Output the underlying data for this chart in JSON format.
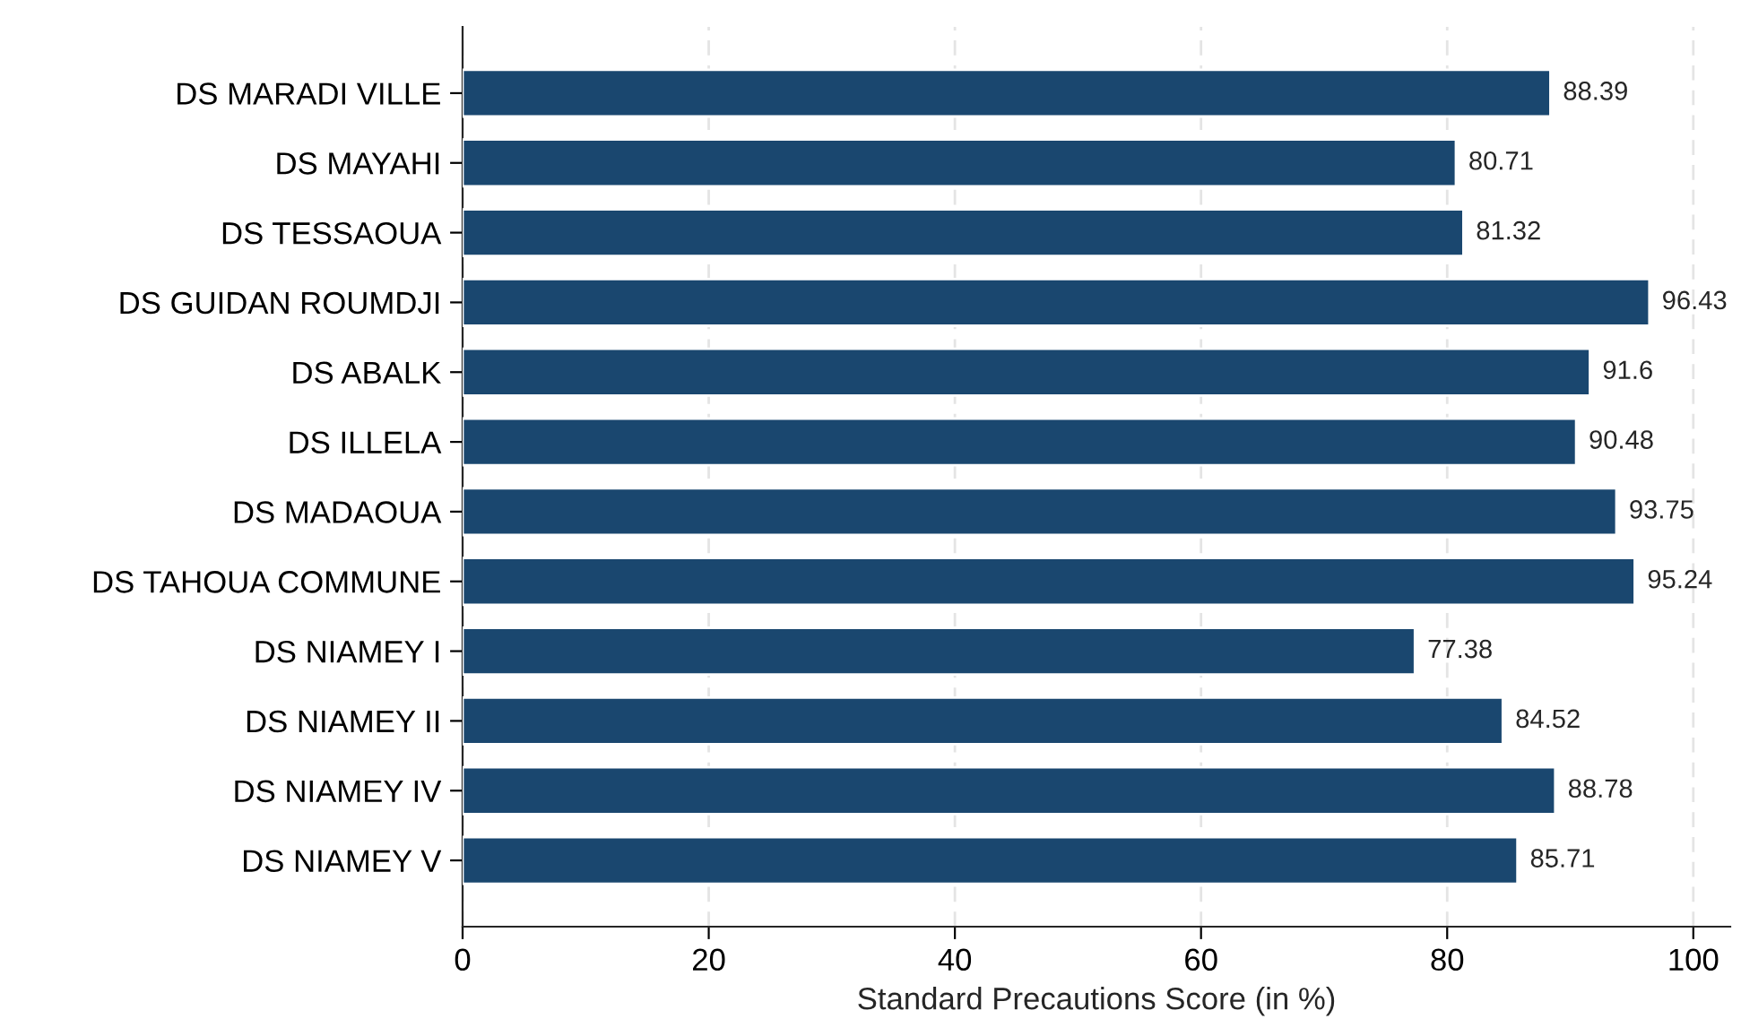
{
  "chart_data": {
    "type": "bar",
    "orientation": "horizontal",
    "xlabel": "Standard Precautions Score (in %)",
    "categories": [
      "DS MARADI VILLE",
      "DS MAYAHI",
      "DS TESSAOUA",
      "DS GUIDAN ROUMDJI",
      "DS ABALK",
      "DS ILLELA",
      "DS MADAOUA",
      "DS TAHOUA COMMUNE",
      "DS NIAMEY I",
      "DS NIAMEY II",
      "DS NIAMEY IV",
      "DS NIAMEY V"
    ],
    "values": [
      88.39,
      80.71,
      81.32,
      96.43,
      91.6,
      90.48,
      93.75,
      95.24,
      77.38,
      84.52,
      88.78,
      85.71
    ],
    "color": "#1a476f",
    "xlim": [
      0,
      103
    ],
    "xticks": [
      0,
      20,
      40,
      60,
      80,
      100
    ],
    "grid": "x",
    "data_labels": true
  }
}
